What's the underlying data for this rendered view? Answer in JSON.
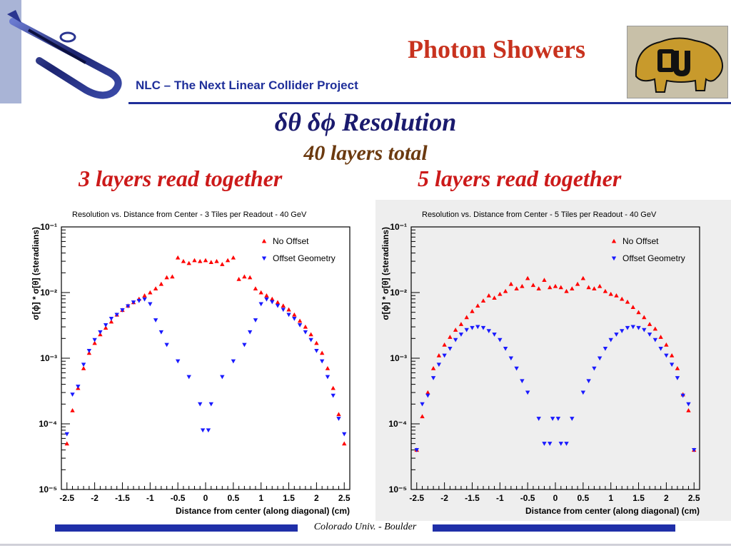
{
  "slide": {
    "title": "Photon Showers",
    "subtitle": "NLC – The Next Linear Collider Project",
    "heading": "δθ δϕ  Resolution",
    "subheading": "40 layers total",
    "left_label": "3 layers read together",
    "right_label": "5 layers read together",
    "footer": "Colorado Univ. - Boulder",
    "colors": {
      "title": "#c8321e",
      "subtitle": "#1f2f9a",
      "no_offset": "#ff0000",
      "offset": "#1a1aff"
    }
  },
  "chart_data": [
    {
      "type": "scatter",
      "title": "Resolution vs. Distance from Center - 3 Tiles per Readout - 40 GeV",
      "xlabel": "Distance from center (along diagonal) (cm)",
      "ylabel": "σ[ϕ] * σ[θ] (steradians)",
      "xlim": [
        -2.6,
        2.6
      ],
      "ylim": [
        1e-05,
        0.1
      ],
      "yscale": "log",
      "xticks": [
        "-2.5",
        "-2",
        "-1.5",
        "-1",
        "-0.5",
        "0",
        "0.5",
        "1",
        "1.5",
        "2",
        "2.5"
      ],
      "yticks": [
        "10⁻⁵",
        "10⁻⁴",
        "10⁻³",
        "10⁻²",
        "10⁻¹"
      ],
      "legend_position": "top-right",
      "series": [
        {
          "name": "No Offset",
          "marker": "triangle-up",
          "color": "#ff0000",
          "x": [
            -2.5,
            -2.4,
            -2.3,
            -2.2,
            -2.1,
            -2.0,
            -1.9,
            -1.8,
            -1.7,
            -1.6,
            -1.5,
            -1.4,
            -1.3,
            -1.2,
            -1.1,
            -1.0,
            -0.9,
            -0.8,
            -0.7,
            -0.6,
            -0.5,
            -0.4,
            -0.3,
            -0.2,
            -0.1,
            0.0,
            0.1,
            0.2,
            0.3,
            0.4,
            0.5,
            0.6,
            0.7,
            0.8,
            0.9,
            1.0,
            1.1,
            1.2,
            1.3,
            1.4,
            1.5,
            1.6,
            1.7,
            1.8,
            1.9,
            2.0,
            2.1,
            2.2,
            2.3,
            2.4,
            2.5
          ],
          "y": [
            5e-05,
            0.00016,
            0.00035,
            0.0007,
            0.0012,
            0.0017,
            0.0023,
            0.0029,
            0.0036,
            0.0046,
            0.0054,
            0.0063,
            0.0071,
            0.008,
            0.009,
            0.01,
            0.0115,
            0.0135,
            0.017,
            0.0175,
            0.034,
            0.03,
            0.028,
            0.031,
            0.03,
            0.031,
            0.029,
            0.03,
            0.027,
            0.031,
            0.034,
            0.016,
            0.0175,
            0.017,
            0.0115,
            0.01,
            0.009,
            0.008,
            0.0071,
            0.0063,
            0.0055,
            0.0046,
            0.0037,
            0.003,
            0.0023,
            0.0017,
            0.0012,
            0.0007,
            0.00035,
            0.00014,
            5e-05
          ]
        },
        {
          "name": "Offset Geometry",
          "marker": "triangle-down",
          "color": "#1a1aff",
          "x": [
            -2.5,
            -2.4,
            -2.3,
            -2.2,
            -2.1,
            -2.0,
            -1.9,
            -1.8,
            -1.7,
            -1.6,
            -1.5,
            -1.4,
            -1.3,
            -1.2,
            -1.1,
            -1.0,
            -0.9,
            -0.8,
            -0.7,
            -0.5,
            -0.3,
            -0.1,
            -0.05,
            0.05,
            0.1,
            0.3,
            0.5,
            0.7,
            0.8,
            0.9,
            1.0,
            1.1,
            1.2,
            1.3,
            1.4,
            1.5,
            1.6,
            1.7,
            1.8,
            1.9,
            2.0,
            2.1,
            2.2,
            2.3,
            2.4,
            2.5
          ],
          "y": [
            7e-05,
            0.00028,
            0.00037,
            0.0008,
            0.0013,
            0.0019,
            0.0025,
            0.0032,
            0.004,
            0.0046,
            0.0054,
            0.0062,
            0.0071,
            0.0075,
            0.0079,
            0.0067,
            0.0038,
            0.0025,
            0.0016,
            0.0009,
            0.00052,
            0.0002,
            8e-05,
            8e-05,
            0.0002,
            0.00052,
            0.0009,
            0.0016,
            0.0025,
            0.0038,
            0.0067,
            0.0079,
            0.0072,
            0.0063,
            0.0055,
            0.0046,
            0.004,
            0.0032,
            0.0025,
            0.0019,
            0.0013,
            0.0009,
            0.00052,
            0.00027,
            0.00012,
            7e-05
          ]
        }
      ]
    },
    {
      "type": "scatter",
      "title": "Resolution vs. Distance from Center - 5 Tiles per Readout - 40 GeV",
      "xlabel": "Distance from center (along diagonal) (cm)",
      "ylabel": "σ[ϕ] * σ[θ] (steradians)",
      "xlim": [
        -2.6,
        2.6
      ],
      "ylim": [
        1e-05,
        0.1
      ],
      "yscale": "log",
      "xticks": [
        "-2.5",
        "-2",
        "-1.5",
        "-1",
        "-0.5",
        "0",
        "0.5",
        "1",
        "1.5",
        "2",
        "2.5"
      ],
      "yticks": [
        "10⁻⁵",
        "10⁻⁴",
        "10⁻³",
        "10⁻²",
        "10⁻¹"
      ],
      "legend_position": "top-right",
      "series": [
        {
          "name": "No Offset",
          "marker": "triangle-up",
          "color": "#ff0000",
          "x": [
            -2.5,
            -2.4,
            -2.3,
            -2.2,
            -2.1,
            -2.0,
            -1.9,
            -1.8,
            -1.7,
            -1.6,
            -1.5,
            -1.4,
            -1.3,
            -1.2,
            -1.1,
            -1.0,
            -0.9,
            -0.8,
            -0.7,
            -0.6,
            -0.5,
            -0.4,
            -0.3,
            -0.2,
            -0.1,
            0.0,
            0.1,
            0.2,
            0.3,
            0.4,
            0.5,
            0.6,
            0.7,
            0.8,
            0.9,
            1.0,
            1.1,
            1.2,
            1.3,
            1.4,
            1.5,
            1.6,
            1.7,
            1.8,
            1.9,
            2.0,
            2.1,
            2.2,
            2.3,
            2.4,
            2.5
          ],
          "y": [
            4e-05,
            0.00013,
            0.0003,
            0.0007,
            0.0011,
            0.0016,
            0.0021,
            0.0027,
            0.0033,
            0.0042,
            0.0052,
            0.0063,
            0.0075,
            0.009,
            0.0083,
            0.0095,
            0.0105,
            0.0135,
            0.0115,
            0.0125,
            0.0165,
            0.013,
            0.0115,
            0.0155,
            0.012,
            0.0125,
            0.012,
            0.0105,
            0.0115,
            0.0135,
            0.0165,
            0.012,
            0.0115,
            0.0125,
            0.0105,
            0.0095,
            0.009,
            0.008,
            0.0072,
            0.006,
            0.005,
            0.0042,
            0.0033,
            0.0028,
            0.0021,
            0.0016,
            0.0011,
            0.0007,
            0.00028,
            0.00016,
            4e-05
          ]
        },
        {
          "name": "Offset Geometry",
          "marker": "triangle-down",
          "color": "#1a1aff",
          "x": [
            -2.5,
            -2.4,
            -2.3,
            -2.2,
            -2.1,
            -2.0,
            -1.9,
            -1.8,
            -1.7,
            -1.6,
            -1.5,
            -1.4,
            -1.3,
            -1.2,
            -1.1,
            -1.0,
            -0.9,
            -0.8,
            -0.7,
            -0.6,
            -0.5,
            -0.3,
            -0.2,
            -0.1,
            -0.05,
            0.05,
            0.1,
            0.2,
            0.3,
            0.5,
            0.6,
            0.7,
            0.8,
            0.9,
            1.0,
            1.1,
            1.2,
            1.3,
            1.4,
            1.5,
            1.6,
            1.7,
            1.8,
            1.9,
            2.0,
            2.1,
            2.2,
            2.3,
            2.4,
            2.5
          ],
          "y": [
            4e-05,
            0.0002,
            0.00027,
            0.0005,
            0.0008,
            0.0011,
            0.0014,
            0.0019,
            0.0023,
            0.0027,
            0.0029,
            0.003,
            0.0029,
            0.0026,
            0.0023,
            0.0019,
            0.0014,
            0.001,
            0.0007,
            0.00045,
            0.0003,
            0.00012,
            5e-05,
            5e-05,
            0.00012,
            0.00012,
            5e-05,
            5e-05,
            0.00012,
            0.0003,
            0.00045,
            0.0007,
            0.001,
            0.0014,
            0.0019,
            0.0023,
            0.0026,
            0.0029,
            0.003,
            0.0029,
            0.0027,
            0.0023,
            0.0019,
            0.0014,
            0.0011,
            0.0008,
            0.0005,
            0.00027,
            0.0002,
            4e-05
          ]
        }
      ]
    }
  ]
}
